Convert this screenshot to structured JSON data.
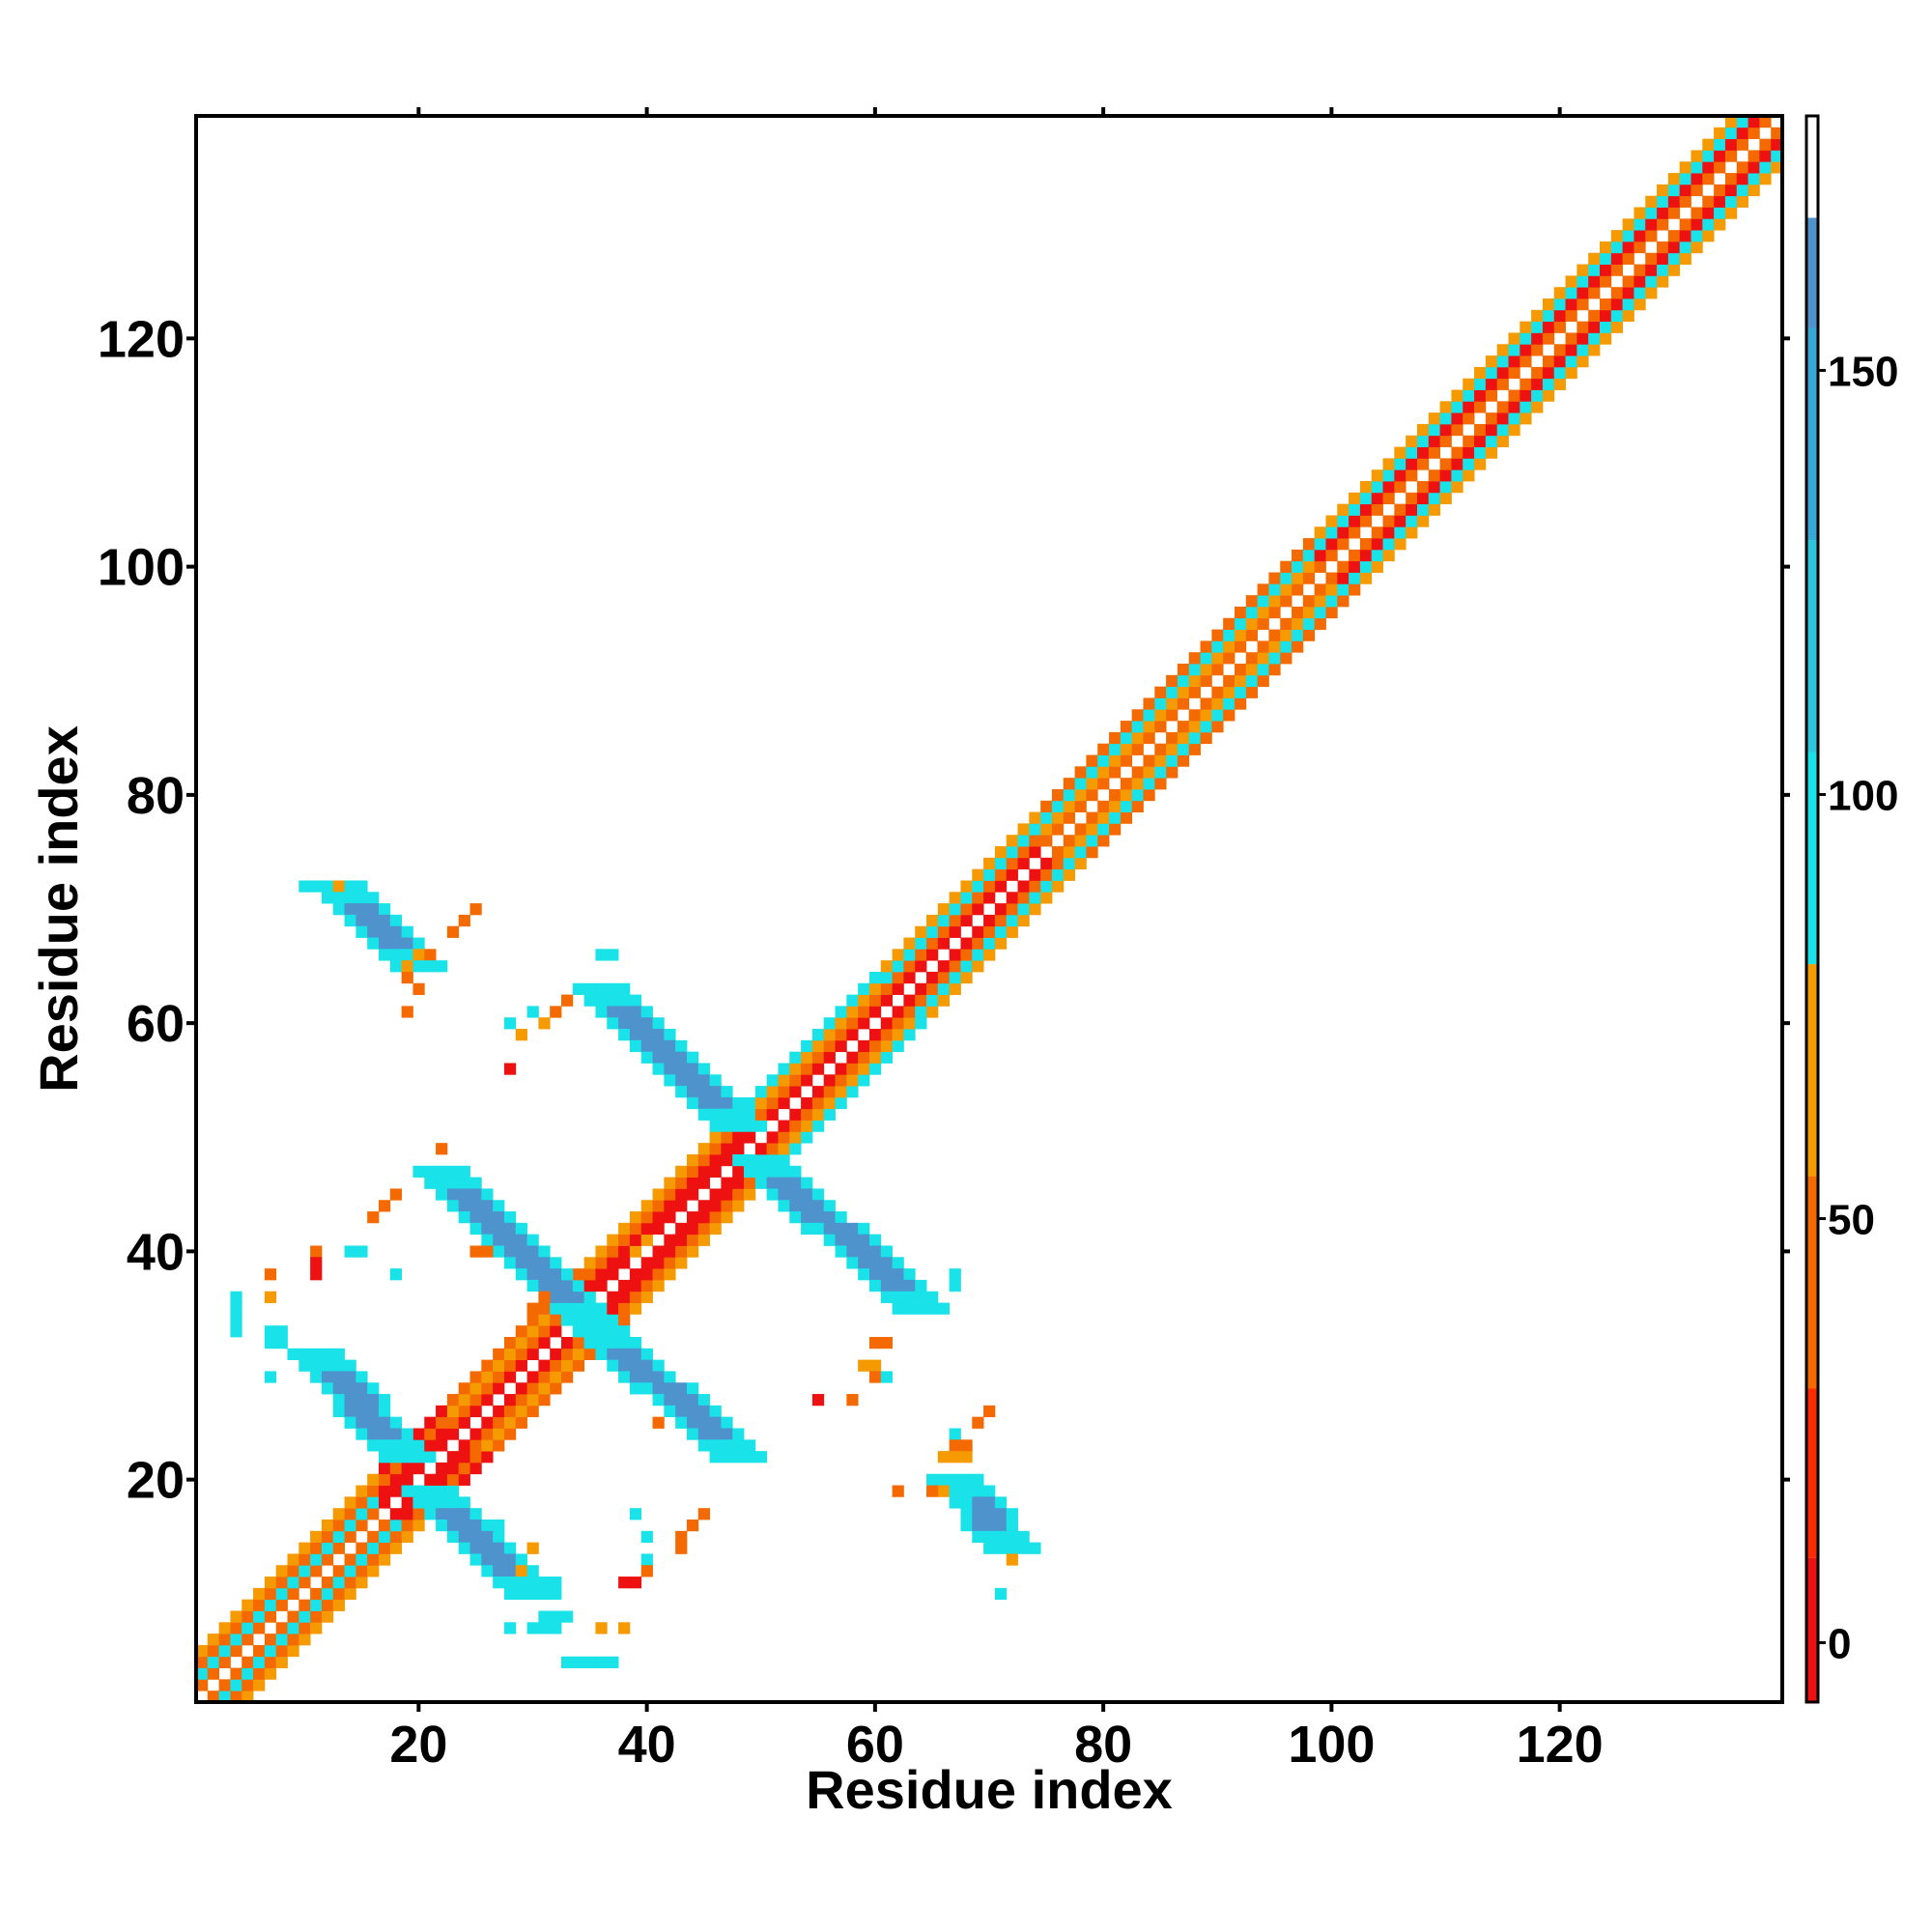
{
  "chart_data": {
    "type": "heatmap",
    "title": "",
    "xlabel": "Residue index",
    "ylabel": "Residue index",
    "xlim": [
      0.5,
      139.5
    ],
    "ylim": [
      0.5,
      139.5
    ],
    "x_ticks": [
      20,
      40,
      60,
      80,
      100,
      120
    ],
    "y_ticks": [
      20,
      40,
      60,
      80,
      100,
      120
    ],
    "x_tick_labels": [
      "20",
      "40",
      "60",
      "80",
      "100",
      "120"
    ],
    "y_tick_labels": [
      "20",
      "40",
      "60",
      "80",
      "100",
      "120"
    ],
    "grid": false,
    "legend": "colorbar-right",
    "colorbar": {
      "range": [
        -7,
        180
      ],
      "ticks": [
        0,
        50,
        100,
        150
      ],
      "tick_labels": [
        "0",
        "50",
        "100",
        "150"
      ],
      "bands": [
        {
          "from": -7,
          "to": 10,
          "color": "#ee1111"
        },
        {
          "from": 10,
          "to": 30,
          "color": "#ff2b00"
        },
        {
          "from": 30,
          "to": 55,
          "color": "#f56a00"
        },
        {
          "from": 55,
          "to": 80,
          "color": "#f59a00"
        },
        {
          "from": 80,
          "to": 105,
          "color": "#19e3e8"
        },
        {
          "from": 105,
          "to": 130,
          "color": "#2ec4dc"
        },
        {
          "from": 130,
          "to": 155,
          "color": "#36a8d6"
        },
        {
          "from": 155,
          "to": 168,
          "color": "#4f93cc"
        },
        {
          "from": 168,
          "to": 180,
          "color": "#ffffff"
        }
      ]
    },
    "cell_bands": {
      "r": "#ee1111",
      "o": "#f56a00",
      "y": "#f59a00",
      "c": "#19e3e8",
      "m": "#36b8dc",
      "b": "#4f93cc"
    },
    "diagonal": {
      "start": 1,
      "end": 139,
      "pattern_by_segment": [
        {
          "from": 1,
          "to": 16,
          "offsets": {
            "1": "o",
            "2": "c",
            "3": "o",
            "4": "y"
          }
        },
        {
          "from": 17,
          "to": 22,
          "offsets": {
            "1": "r",
            "2": "r",
            "3": "o",
            "4": "r"
          }
        },
        {
          "from": 23,
          "to": 34,
          "offsets": {
            "1": "r",
            "2": "o",
            "3": "y",
            "4": "o"
          }
        },
        {
          "from": 35,
          "to": 48,
          "offsets": {
            "1": "r",
            "2": "r",
            "3": "o",
            "4": "y"
          }
        },
        {
          "from": 49,
          "to": 60,
          "offsets": {
            "1": "r",
            "2": "o",
            "3": "y",
            "4": "c"
          }
        },
        {
          "from": 61,
          "to": 74,
          "offsets": {
            "1": "r",
            "2": "o",
            "3": "c",
            "4": "y"
          }
        },
        {
          "from": 75,
          "to": 98,
          "offsets": {
            "1": "o",
            "2": "y",
            "3": "c",
            "4": "o"
          }
        },
        {
          "from": 99,
          "to": 139,
          "offsets": {
            "1": "o",
            "2": "r",
            "3": "c",
            "4": "y"
          }
        }
      ]
    },
    "strands": [
      {
        "from": [
          11,
          31
        ],
        "to": [
          19,
          22
        ],
        "width": 2,
        "band": "b",
        "edge_band": "c"
      },
      {
        "from": [
          21,
          19
        ],
        "to": [
          30,
          10
        ],
        "width": 2,
        "band": "b",
        "edge_band": "c"
      },
      {
        "from": [
          22,
          47
        ],
        "to": [
          35,
          34
        ],
        "width": 2,
        "band": "b",
        "edge_band": "c"
      },
      {
        "from": [
          36,
          33
        ],
        "to": [
          48,
          22
        ],
        "width": 2,
        "band": "b",
        "edge_band": "c"
      },
      {
        "from": [
          36,
          63
        ],
        "to": [
          48,
          51
        ],
        "width": 2,
        "band": "b",
        "edge_band": "c"
      },
      {
        "from": [
          50,
          48
        ],
        "to": [
          64,
          35
        ],
        "width": 2,
        "band": "b",
        "edge_band": "c"
      },
      {
        "from": [
          13,
          72
        ],
        "to": [
          20,
          65
        ],
        "width": 2,
        "band": "b",
        "edge_band": "c"
      },
      {
        "from": [
          67,
          20
        ],
        "to": [
          72,
          14
        ],
        "width": 2,
        "band": "b",
        "edge_band": "c"
      }
    ],
    "scattered_cells": [
      [
        10,
        72,
        "c"
      ],
      [
        13,
        72,
        "y"
      ],
      [
        19,
        65,
        "y"
      ],
      [
        20,
        66,
        "y"
      ],
      [
        21,
        66,
        "o"
      ],
      [
        23,
        68,
        "o"
      ],
      [
        24,
        69,
        "o"
      ],
      [
        25,
        70,
        "o"
      ],
      [
        22,
        65,
        "c"
      ],
      [
        19,
        64,
        "o"
      ],
      [
        20,
        63,
        "o"
      ],
      [
        19,
        61,
        "o"
      ],
      [
        28,
        60,
        "c"
      ],
      [
        30,
        61,
        "c"
      ],
      [
        31,
        60,
        "y"
      ],
      [
        32,
        61,
        "o"
      ],
      [
        33,
        62,
        "o"
      ],
      [
        29,
        59,
        "y"
      ],
      [
        28,
        56,
        "r"
      ],
      [
        36,
        66,
        "c"
      ],
      [
        37,
        66,
        "c"
      ],
      [
        18,
        45,
        "o"
      ],
      [
        17,
        44,
        "o"
      ],
      [
        16,
        43,
        "o"
      ],
      [
        14,
        40,
        "c"
      ],
      [
        15,
        40,
        "c"
      ],
      [
        11,
        40,
        "o"
      ],
      [
        11,
        39,
        "r"
      ],
      [
        11,
        38,
        "r"
      ],
      [
        7,
        38,
        "o"
      ],
      [
        7,
        36,
        "y"
      ],
      [
        4,
        36,
        "c"
      ],
      [
        4,
        35,
        "c"
      ],
      [
        4,
        34,
        "c"
      ],
      [
        4,
        33,
        "c"
      ],
      [
        18,
        38,
        "c"
      ],
      [
        25,
        40,
        "o"
      ],
      [
        26,
        40,
        "o"
      ],
      [
        7,
        33,
        "c"
      ],
      [
        8,
        33,
        "c"
      ],
      [
        7,
        32,
        "c"
      ],
      [
        8,
        32,
        "c"
      ],
      [
        7,
        29,
        "c"
      ],
      [
        21,
        47,
        "c"
      ],
      [
        22,
        49,
        "o"
      ],
      [
        67,
        38,
        "c"
      ],
      [
        67,
        37,
        "c"
      ],
      [
        66,
        35,
        "c"
      ],
      [
        60,
        32,
        "o"
      ],
      [
        61,
        32,
        "o"
      ],
      [
        59,
        30,
        "y"
      ],
      [
        60,
        30,
        "y"
      ],
      [
        60,
        29,
        "o"
      ],
      [
        61,
        29,
        "c"
      ],
      [
        58,
        27,
        "o"
      ],
      [
        55,
        27,
        "r"
      ],
      [
        41,
        25,
        "o"
      ],
      [
        49,
        23,
        "c"
      ],
      [
        67,
        24,
        "c"
      ],
      [
        67,
        23,
        "o"
      ],
      [
        68,
        23,
        "o"
      ],
      [
        69,
        25,
        "o"
      ],
      [
        70,
        26,
        "o"
      ],
      [
        66,
        22,
        "y"
      ],
      [
        67,
        22,
        "y"
      ],
      [
        68,
        22,
        "y"
      ],
      [
        62,
        19,
        "o"
      ],
      [
        65,
        19,
        "o"
      ],
      [
        66,
        19,
        "y"
      ],
      [
        67,
        18,
        "c"
      ],
      [
        68,
        18,
        "c"
      ],
      [
        71,
        10,
        "c"
      ],
      [
        72,
        13,
        "y"
      ],
      [
        45,
        17,
        "o"
      ],
      [
        44,
        16,
        "o"
      ],
      [
        43,
        15,
        "o"
      ],
      [
        43,
        14,
        "o"
      ],
      [
        40,
        15,
        "c"
      ],
      [
        40,
        13,
        "c"
      ],
      [
        39,
        17,
        "c"
      ],
      [
        38,
        11,
        "r"
      ],
      [
        39,
        11,
        "r"
      ],
      [
        40,
        12,
        "o"
      ],
      [
        31,
        11,
        "c"
      ],
      [
        32,
        11,
        "c"
      ],
      [
        30,
        7,
        "c"
      ],
      [
        31,
        7,
        "c"
      ],
      [
        32,
        7,
        "c"
      ],
      [
        31,
        8,
        "c"
      ],
      [
        32,
        8,
        "c"
      ],
      [
        33,
        8,
        "c"
      ],
      [
        28,
        7,
        "c"
      ],
      [
        36,
        7,
        "y"
      ],
      [
        38,
        7,
        "y"
      ],
      [
        33,
        4,
        "c"
      ],
      [
        34,
        4,
        "c"
      ],
      [
        35,
        4,
        "c"
      ],
      [
        36,
        4,
        "c"
      ],
      [
        37,
        4,
        "c"
      ],
      [
        29,
        12,
        "y"
      ],
      [
        30,
        14,
        "y"
      ],
      [
        26,
        16,
        "c"
      ],
      [
        27,
        16,
        "c"
      ],
      [
        27,
        15,
        "c"
      ],
      [
        30,
        35,
        "o"
      ],
      [
        31,
        36,
        "o"
      ],
      [
        34,
        38,
        "o"
      ],
      [
        39,
        40,
        "y"
      ],
      [
        40,
        41,
        "y"
      ]
    ]
  }
}
